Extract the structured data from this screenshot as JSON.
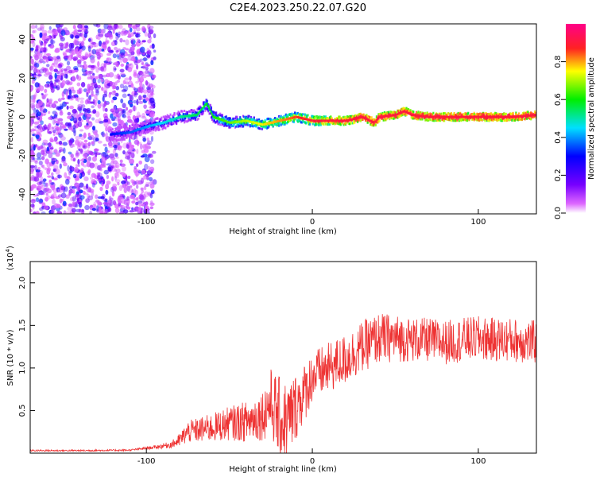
{
  "title": "C2E4.2023.250.22.07.G20",
  "colors": {
    "snr_line": "#ee3333",
    "axis": "#000000",
    "background": "#ffffff"
  },
  "chart_data": [
    {
      "type": "heatmap",
      "xlabel": "Height of straight line (km)",
      "ylabel": "Frequency (Hz)",
      "xlim": [
        -170,
        135
      ],
      "ylim": [
        -50,
        48
      ],
      "x_ticks": [
        -100,
        0,
        100
      ],
      "y_ticks": [
        -40,
        -20,
        0,
        20,
        40
      ],
      "grid": false,
      "colorbar": {
        "label": "Normalized spectral amplitude",
        "range": [
          0,
          1
        ],
        "ticks": [
          0.0,
          0.2,
          0.4,
          0.6,
          0.8
        ],
        "colormap": "hsv-reversed (magenta-blue-cyan-green-yellow-red)"
      },
      "ridge": {
        "x": [
          -122,
          -110,
          -100,
          -90,
          -80,
          -70,
          -64,
          -60,
          -50,
          -40,
          -30,
          -20,
          -10,
          0,
          10,
          20,
          30,
          37,
          40,
          50,
          55,
          60,
          70,
          80,
          90,
          100,
          110,
          120,
          135
        ],
        "y": [
          -9,
          -8,
          -5,
          -3,
          0,
          1,
          7,
          0,
          -3,
          -2,
          -4,
          -2,
          0,
          -2,
          -2,
          -2,
          0,
          -3,
          0,
          1,
          3,
          1,
          0,
          0,
          0,
          0,
          0,
          0,
          1
        ]
      }
    },
    {
      "type": "line",
      "xlabel": "Height of straight line (km)",
      "ylabel": "SNR (10 * v/v)",
      "y_multiplier": "(x10^4)",
      "xlim": [
        -170,
        135
      ],
      "ylim": [
        0,
        22500
      ],
      "x_ticks": [
        -100,
        0,
        100
      ],
      "y_ticks": [
        5000,
        10000,
        15000,
        20000
      ],
      "y_tick_labels": [
        "0.5",
        "1.0",
        "1.5",
        "2.0"
      ],
      "grid": false,
      "series": [
        {
          "envelope_x": [
            -170,
            -140,
            -110,
            -95,
            -85,
            -80,
            -75,
            -60,
            -50,
            -40,
            -30,
            -25,
            -20,
            -15,
            -10,
            -5,
            0,
            10,
            20,
            30,
            40,
            50,
            60,
            70,
            80,
            90,
            100,
            110,
            120,
            135
          ],
          "envelope_mean": [
            300,
            300,
            350,
            700,
            1000,
            1500,
            2500,
            3000,
            3500,
            3700,
            4500,
            6000,
            4000,
            3500,
            5500,
            7000,
            9000,
            10000,
            11000,
            12500,
            13500,
            13500,
            13300,
            13300,
            13000,
            13300,
            13500,
            13300,
            13300,
            13000
          ],
          "envelope_amplitude": [
            100,
            100,
            100,
            200,
            400,
            800,
            1300,
            1700,
            2000,
            2400,
            3000,
            4000,
            5000,
            5000,
            4000,
            3500,
            3000,
            3000,
            3000,
            3000,
            3000,
            2800,
            2600,
            2600,
            2600,
            2600,
            2600,
            2600,
            2600,
            2600
          ]
        }
      ]
    }
  ]
}
